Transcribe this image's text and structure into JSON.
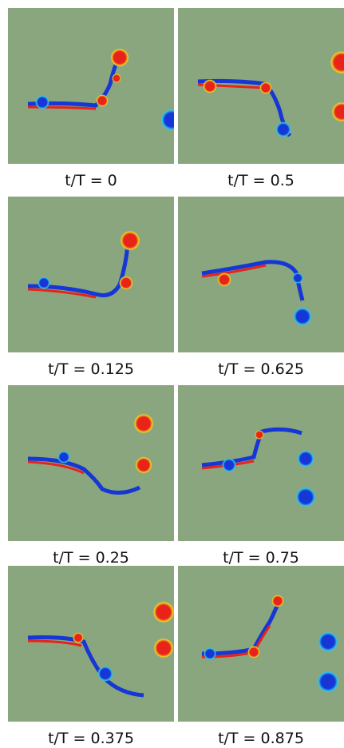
{
  "colors": {
    "background": "#8aa67e",
    "red": "#e8231a",
    "yellow": "#f2d21e",
    "blue": "#1636d6",
    "cyan": "#2bc7f0"
  },
  "panels": [
    {
      "caption": "t/T = 0"
    },
    {
      "caption": "t/T = 0.5"
    },
    {
      "caption": "t/T = 0.125"
    },
    {
      "caption": "t/T = 0.625"
    },
    {
      "caption": "t/T = 0.25"
    },
    {
      "caption": "t/T = 0.75"
    },
    {
      "caption": "t/T = 0.375"
    },
    {
      "caption": "t/T = 0.875"
    }
  ]
}
